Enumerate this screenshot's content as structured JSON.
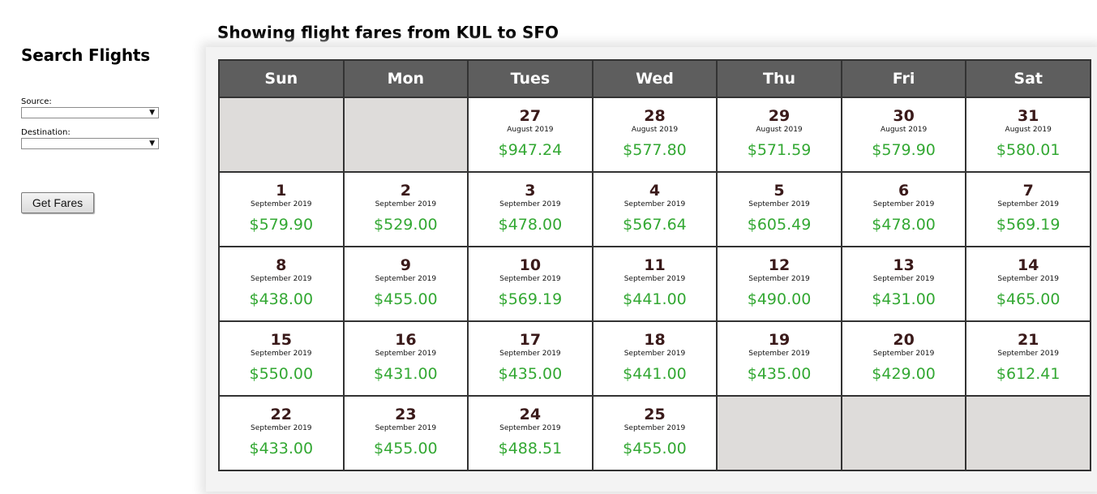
{
  "sidebar": {
    "title": "Search Flights",
    "source_label": "Source:",
    "source_value": "",
    "destination_label": "Destination:",
    "destination_value": "",
    "get_fares_label": "Get Fares"
  },
  "main": {
    "title": "Showing flight fares from KUL to SFO"
  },
  "calendar": {
    "headers": [
      "Sun",
      "Mon",
      "Tues",
      "Wed",
      "Thu",
      "Fri",
      "Sat"
    ],
    "weeks": [
      [
        null,
        null,
        {
          "day": "27",
          "month": "August 2019",
          "fare": "$947.24"
        },
        {
          "day": "28",
          "month": "August 2019",
          "fare": "$577.80"
        },
        {
          "day": "29",
          "month": "August 2019",
          "fare": "$571.59"
        },
        {
          "day": "30",
          "month": "August 2019",
          "fare": "$579.90"
        },
        {
          "day": "31",
          "month": "August 2019",
          "fare": "$580.01"
        }
      ],
      [
        {
          "day": "1",
          "month": "September 2019",
          "fare": "$579.90"
        },
        {
          "day": "2",
          "month": "September 2019",
          "fare": "$529.00"
        },
        {
          "day": "3",
          "month": "September 2019",
          "fare": "$478.00"
        },
        {
          "day": "4",
          "month": "September 2019",
          "fare": "$567.64"
        },
        {
          "day": "5",
          "month": "September 2019",
          "fare": "$605.49"
        },
        {
          "day": "6",
          "month": "September 2019",
          "fare": "$478.00"
        },
        {
          "day": "7",
          "month": "September 2019",
          "fare": "$569.19"
        }
      ],
      [
        {
          "day": "8",
          "month": "September 2019",
          "fare": "$438.00"
        },
        {
          "day": "9",
          "month": "September 2019",
          "fare": "$455.00"
        },
        {
          "day": "10",
          "month": "September 2019",
          "fare": "$569.19"
        },
        {
          "day": "11",
          "month": "September 2019",
          "fare": "$441.00"
        },
        {
          "day": "12",
          "month": "September 2019",
          "fare": "$490.00"
        },
        {
          "day": "13",
          "month": "September 2019",
          "fare": "$431.00"
        },
        {
          "day": "14",
          "month": "September 2019",
          "fare": "$465.00"
        }
      ],
      [
        {
          "day": "15",
          "month": "September 2019",
          "fare": "$550.00"
        },
        {
          "day": "16",
          "month": "September 2019",
          "fare": "$431.00"
        },
        {
          "day": "17",
          "month": "September 2019",
          "fare": "$435.00"
        },
        {
          "day": "18",
          "month": "September 2019",
          "fare": "$441.00"
        },
        {
          "day": "19",
          "month": "September 2019",
          "fare": "$435.00"
        },
        {
          "day": "20",
          "month": "September 2019",
          "fare": "$429.00"
        },
        {
          "day": "21",
          "month": "September 2019",
          "fare": "$612.41"
        }
      ],
      [
        {
          "day": "22",
          "month": "September 2019",
          "fare": "$433.00"
        },
        {
          "day": "23",
          "month": "September 2019",
          "fare": "$455.00"
        },
        {
          "day": "24",
          "month": "September 2019",
          "fare": "$488.51"
        },
        {
          "day": "25",
          "month": "September 2019",
          "fare": "$455.00"
        },
        null,
        null,
        null
      ]
    ]
  },
  "colors": {
    "header_bg": "#5e5e5e",
    "fare_green": "#33a833",
    "empty_cell": "#dedcda"
  },
  "icons": {
    "select_arrow": "dropdown-arrow-icon"
  }
}
